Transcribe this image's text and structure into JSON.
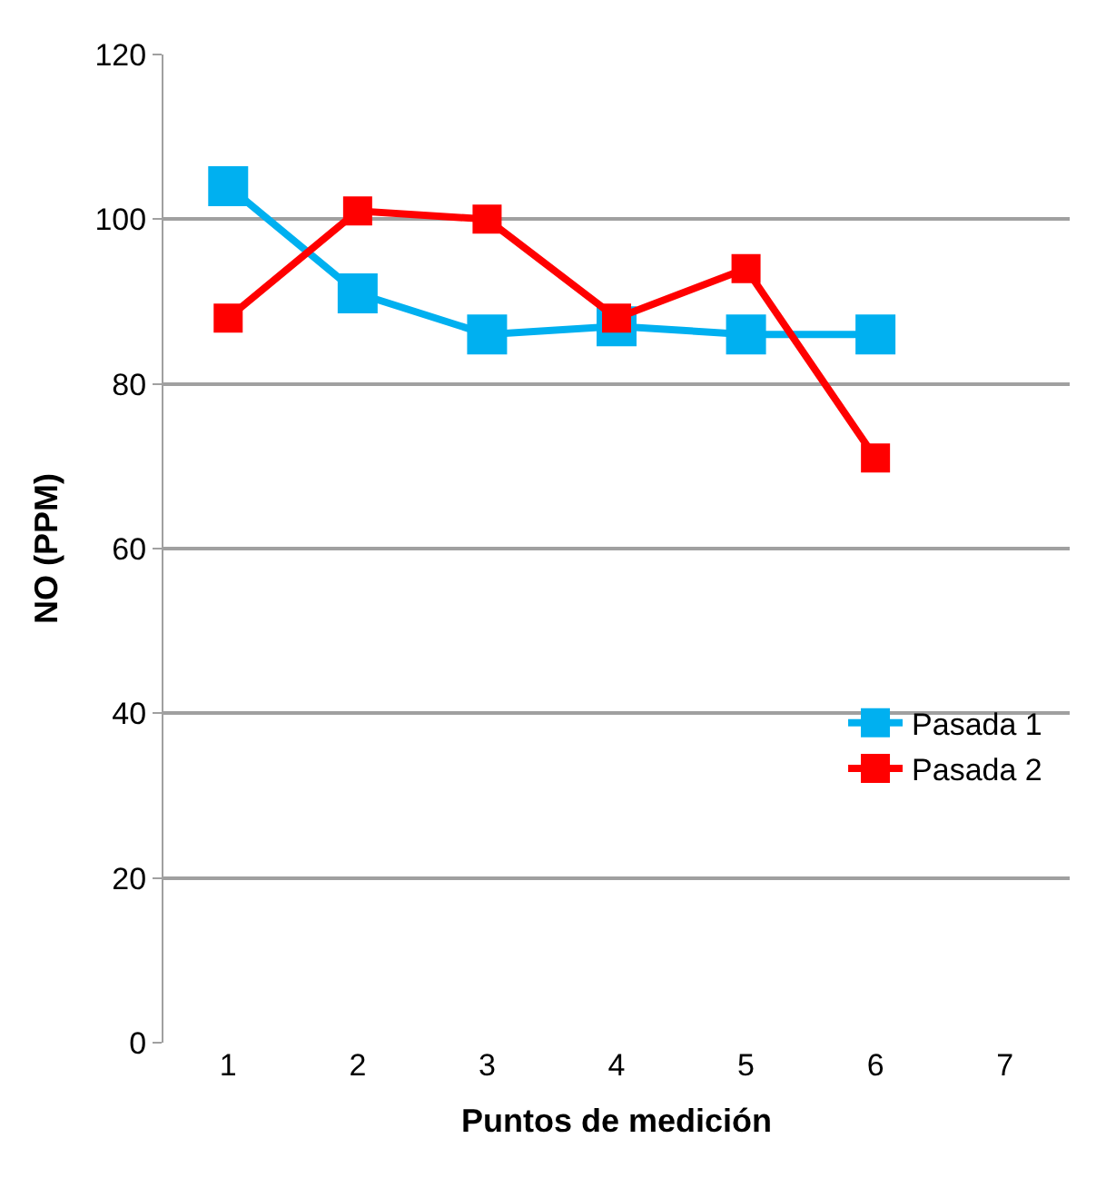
{
  "chart_data": {
    "type": "line",
    "xlabel": "Puntos de medición",
    "ylabel": "NO (PPM)",
    "categories": [
      "1",
      "2",
      "3",
      "4",
      "5",
      "6",
      "7"
    ],
    "series": [
      {
        "name": "Pasada 1",
        "color": "#00b0f0",
        "values": [
          104,
          91,
          86,
          87,
          86,
          86,
          null
        ]
      },
      {
        "name": "Pasada 2",
        "color": "#ff0000",
        "values": [
          88,
          101,
          100,
          88,
          94,
          71,
          null
        ]
      }
    ],
    "ylim": [
      0,
      120
    ],
    "yticks": [
      0,
      20,
      40,
      60,
      80,
      100,
      120
    ],
    "grid": "y",
    "legend": "right",
    "marker": "square",
    "line_style": "solid"
  }
}
